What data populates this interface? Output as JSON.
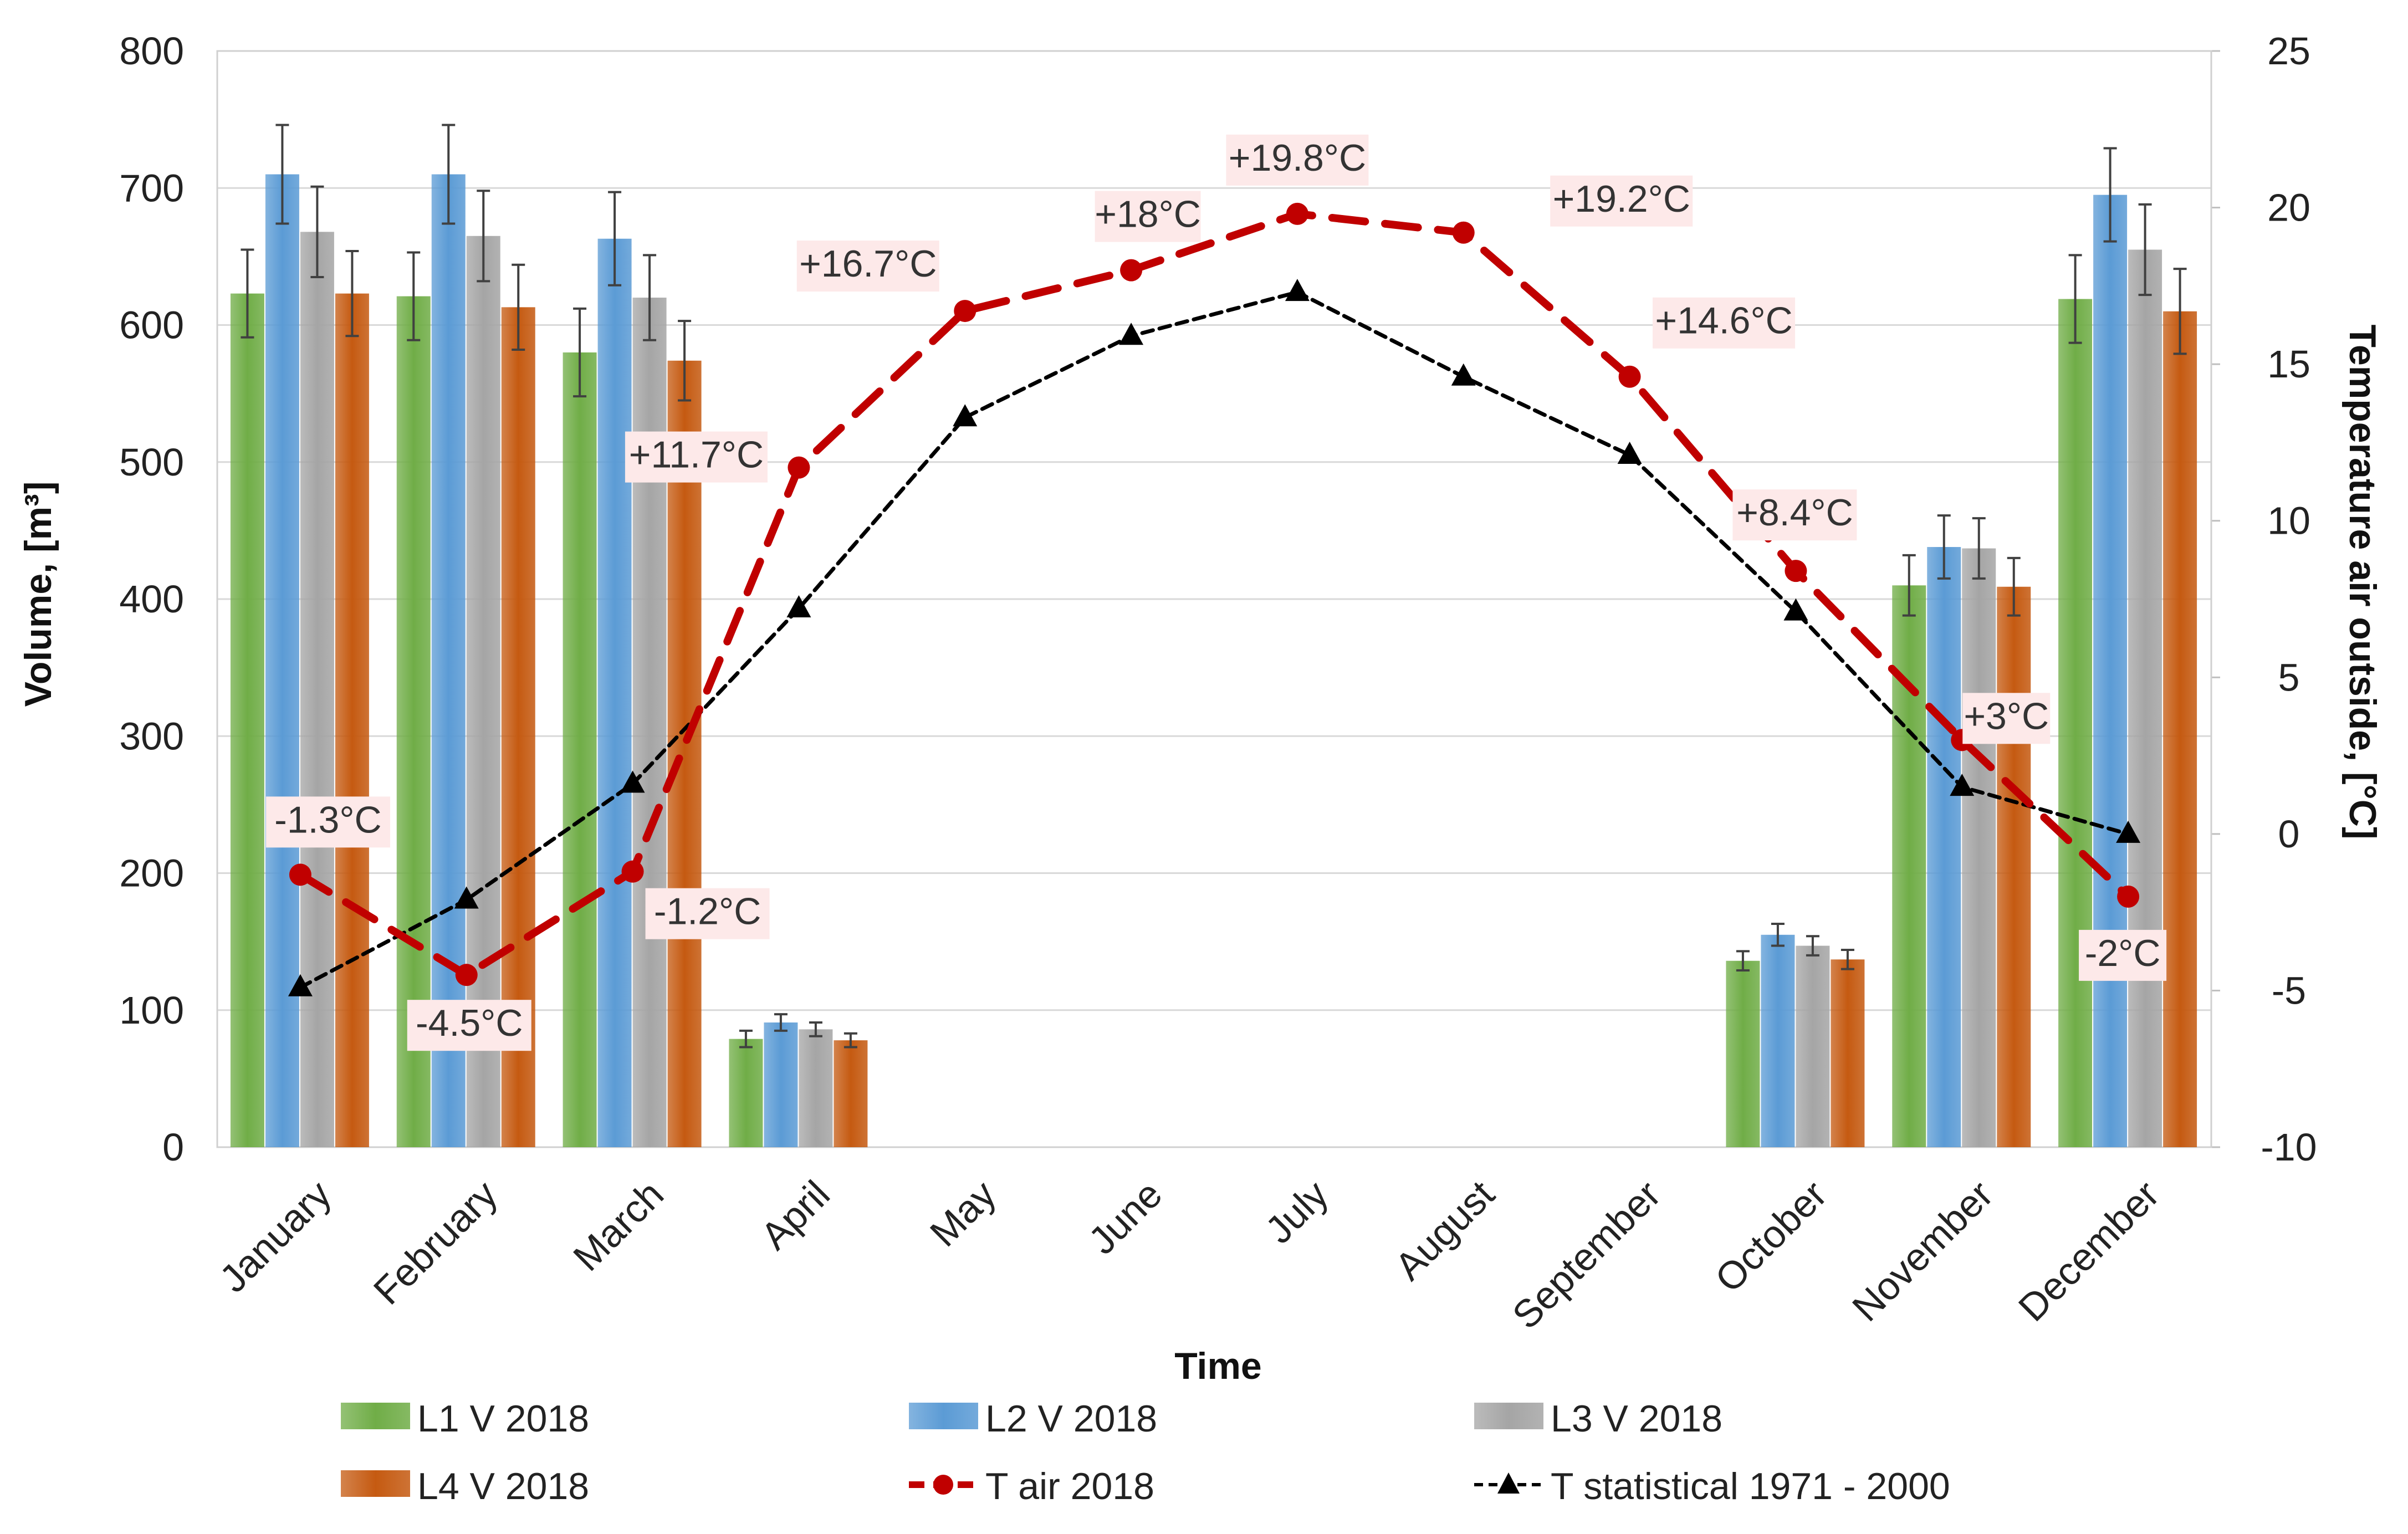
{
  "chart_data": {
    "type": "bar",
    "title": "",
    "xlabel": "Time",
    "ylabel": "Volume, [m³]",
    "y2label": "Temperature air outside, [°C]",
    "ylim": [
      0,
      800
    ],
    "y2lim": [
      -10,
      25
    ],
    "yticks": [
      "0",
      "100",
      "200",
      "300",
      "400",
      "500",
      "600",
      "700",
      "800"
    ],
    "y2ticks": [
      "-10",
      "-5",
      "0",
      "5",
      "10",
      "15",
      "20",
      "25"
    ],
    "grid": true,
    "categories": [
      "January",
      "February",
      "March",
      "April",
      "May",
      "June",
      "July",
      "August",
      "September",
      "October",
      "November",
      "December"
    ],
    "series": [
      {
        "name": "L1 V 2018",
        "type": "bar",
        "color": "#70AD47",
        "values": [
          623,
          621,
          580,
          79,
          0,
          0,
          0,
          0,
          0,
          136,
          410,
          619
        ],
        "errors": [
          32,
          32,
          32,
          6,
          0,
          0,
          0,
          0,
          0,
          7,
          22,
          32
        ]
      },
      {
        "name": "L2 V 2018",
        "type": "bar",
        "color": "#5B9BD5",
        "values": [
          710,
          710,
          663,
          91,
          0,
          0,
          0,
          0,
          0,
          155,
          438,
          695
        ],
        "errors": [
          36,
          36,
          34,
          6,
          0,
          0,
          0,
          0,
          0,
          8,
          23,
          34
        ]
      },
      {
        "name": "L3 V 2018",
        "type": "bar",
        "color": "#A5A5A5",
        "values": [
          668,
          665,
          620,
          86,
          0,
          0,
          0,
          0,
          0,
          147,
          437,
          655
        ],
        "errors": [
          33,
          33,
          31,
          5,
          0,
          0,
          0,
          0,
          0,
          7,
          22,
          33
        ]
      },
      {
        "name": "L4 V 2018",
        "type": "bar",
        "color": "#C55A11",
        "values": [
          623,
          613,
          574,
          78,
          0,
          0,
          0,
          0,
          0,
          137,
          409,
          610
        ],
        "errors": [
          31,
          31,
          29,
          5,
          0,
          0,
          0,
          0,
          0,
          7,
          21,
          31
        ]
      },
      {
        "name": "T air 2018",
        "type": "line",
        "axis": "right",
        "color": "#C00000",
        "style": "dashed",
        "marker": "circle",
        "values": [
          -1.3,
          -4.5,
          -1.2,
          11.7,
          16.7,
          18,
          19.8,
          19.2,
          14.6,
          8.4,
          3,
          -2
        ],
        "labels": [
          "-1.3°C",
          "-4.5°C",
          "-1.2°C",
          "+11.7°C",
          "+16.7°C",
          "+18°C",
          "+19.8°C",
          "+19.2°C",
          "+14.6°C",
          "+8.4°C",
          "+3°C",
          "-2°C"
        ]
      },
      {
        "name": "T statistical 1971 - 2000",
        "type": "line",
        "axis": "right",
        "color": "#000000",
        "style": "dotted",
        "marker": "triangle",
        "values": [
          -4.9,
          -2.1,
          1.6,
          7.2,
          13.3,
          15.9,
          17.3,
          14.6,
          12.1,
          7.1,
          1.5,
          0.0
        ]
      }
    ],
    "legend": {
      "position": "bottom",
      "entries": [
        "L1 V 2018",
        "L2 V 2018",
        "L3 V 2018",
        "L4 V 2018",
        "T air 2018",
        "T statistical 1971 - 2000"
      ]
    }
  }
}
